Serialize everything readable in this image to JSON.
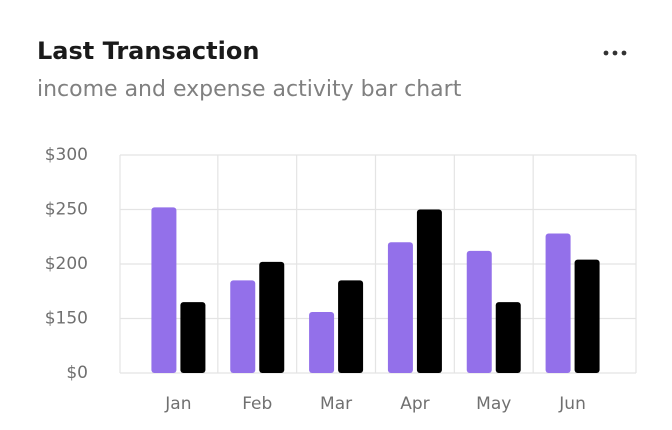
{
  "chart_data": {
    "type": "bar",
    "title": "Last Transaction",
    "subtitle": "income and expense activity bar chart",
    "categories": [
      "Jan",
      "Feb",
      "Mar",
      "Apr",
      "May",
      "Jun"
    ],
    "series": [
      {
        "color": "#9370ea",
        "values": [
          252,
          185,
          156,
          220,
          212,
          228
        ]
      },
      {
        "color": "#000000",
        "values": [
          165,
          202,
          185,
          250,
          165,
          204
        ]
      }
    ],
    "ylim": [
      0,
      300
    ],
    "yticks": [
      {
        "value": 0,
        "label": "$0"
      },
      {
        "value": 150,
        "label": "$150"
      },
      {
        "value": 200,
        "label": "$200"
      },
      {
        "value": 250,
        "label": "$250"
      },
      {
        "value": 300,
        "label": "$300"
      }
    ],
    "grid": true
  }
}
